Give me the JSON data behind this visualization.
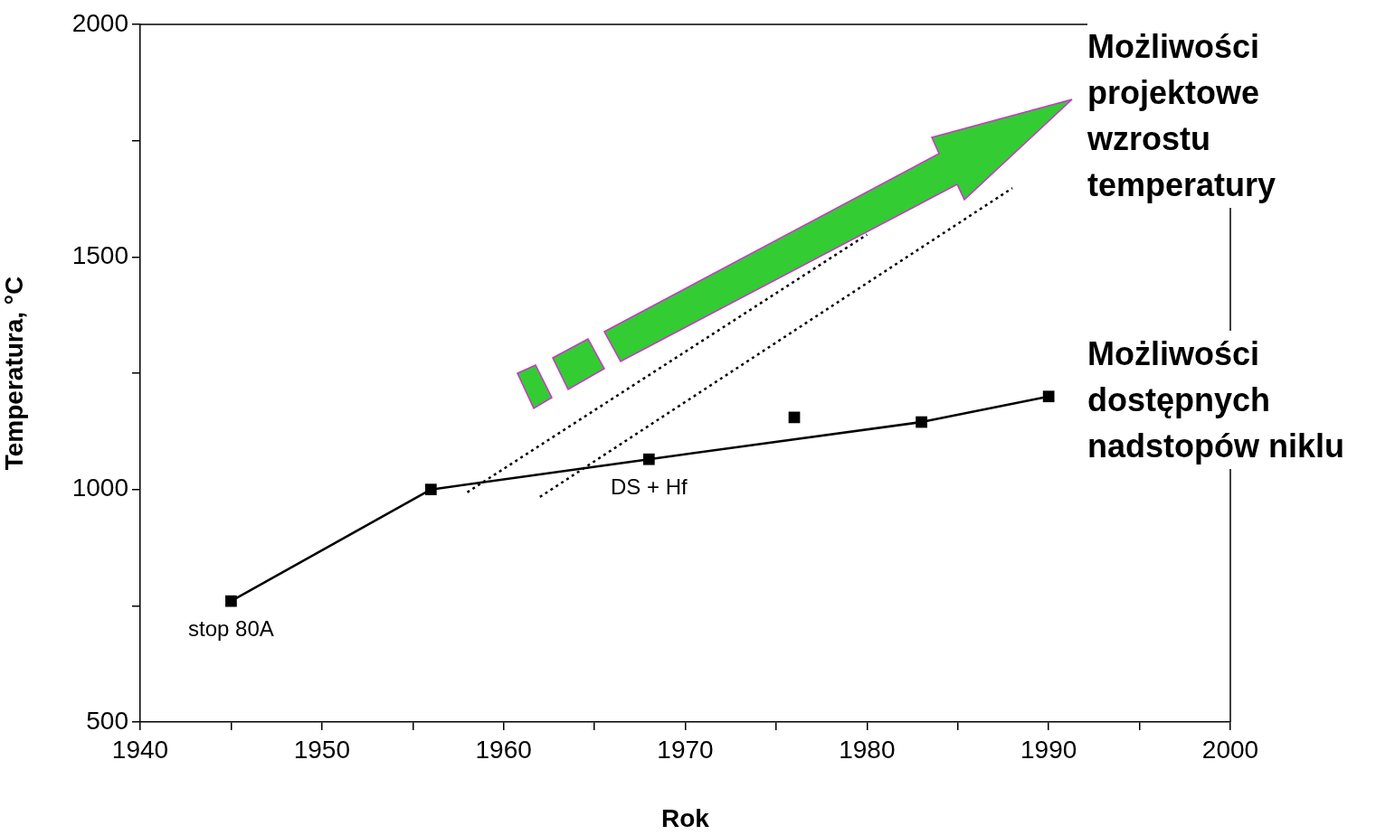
{
  "chart_data": {
    "type": "line",
    "xlabel": "Rok",
    "ylabel": "Temperatura, °C",
    "xlim": [
      1940,
      2000
    ],
    "xticks": [
      1940,
      {
        "value": 1945,
        "label": null
      },
      1950,
      {
        "value": 1955,
        "label": null
      },
      1960,
      {
        "value": 1965,
        "label": null
      },
      1970,
      {
        "value": 1975,
        "label": null
      },
      1980,
      {
        "value": 1985,
        "label": null
      },
      1990,
      {
        "value": 1995,
        "label": null
      },
      2000
    ],
    "ylim": [
      500,
      2000
    ],
    "yticks": [
      500,
      {
        "value": 750,
        "label": null
      },
      1000,
      {
        "value": 1250,
        "label": null
      },
      1500,
      {
        "value": 1750,
        "label": null
      },
      2000
    ],
    "grid": false,
    "legend": false,
    "marker": "square",
    "series": [
      {
        "type": "line",
        "color": "#000000",
        "x": [
          1945,
          1956,
          1968,
          1983,
          1990
        ],
        "values": [
          760,
          1000,
          1065,
          1145,
          1200
        ],
        "line_style": "solid"
      },
      {
        "type": "scatter",
        "color": "#000000",
        "x": [
          1976
        ],
        "values": [
          1155
        ]
      },
      {
        "type": "line",
        "color": "#000000",
        "x": [
          1958,
          1980
        ],
        "values": [
          994,
          1548
        ],
        "line_style": "dotted",
        "marker": "none"
      },
      {
        "type": "line",
        "color": "#000000",
        "x": [
          1962,
          1988
        ],
        "values": [
          984,
          1648
        ],
        "line_style": "dotted",
        "marker": "none"
      }
    ],
    "annotations": [
      {
        "text": "stop 80A",
        "x": 1945,
        "y": 760
      },
      {
        "text": "DS + Hf",
        "x": 1968,
        "y": 1065
      },
      "Możliwości projektowe wzrostu temperatury",
      "Możliwości dostępnych nadstopów niklu"
    ]
  }
}
